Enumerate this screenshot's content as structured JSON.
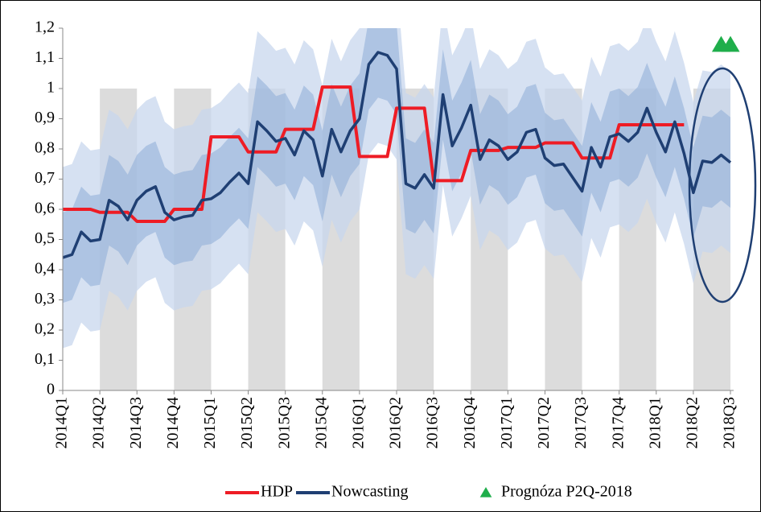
{
  "chart_data": {
    "type": "line",
    "categories": [
      "2014Q1",
      null,
      null,
      null,
      "2014Q2",
      null,
      null,
      null,
      "2014Q3",
      null,
      null,
      null,
      "2014Q4",
      null,
      null,
      null,
      "2015Q1",
      null,
      null,
      null,
      "2015Q2",
      null,
      null,
      null,
      "2015Q3",
      null,
      null,
      null,
      "2015Q4",
      null,
      null,
      null,
      "2016Q1",
      null,
      null,
      null,
      "2016Q2",
      null,
      null,
      null,
      "2016Q3",
      null,
      null,
      null,
      "2016Q4",
      null,
      null,
      null,
      "2017Q1",
      null,
      null,
      null,
      "2017Q2",
      null,
      null,
      null,
      "2017Q3",
      null,
      null,
      null,
      "2017Q4",
      null,
      null,
      null,
      "2018Q1",
      null,
      null,
      null,
      "2018Q2",
      null,
      null,
      null,
      "2018Q3"
    ],
    "ylim": [
      0,
      1.2
    ],
    "yticks": [
      0,
      {
        "value": 0.1,
        "label": "0,1"
      },
      {
        "value": 0.2,
        "label": "0,2"
      },
      {
        "value": 0.3,
        "label": "0,3"
      },
      {
        "value": 0.4,
        "label": "0,4"
      },
      {
        "value": 0.5,
        "label": "0,5"
      },
      {
        "value": 0.6,
        "label": "0,6"
      },
      {
        "value": 0.7,
        "label": "0,7"
      },
      {
        "value": 0.8,
        "label": "0,8"
      },
      {
        "value": 0.9,
        "label": "0,9"
      },
      1,
      {
        "value": 1.1,
        "label": "1,1"
      },
      {
        "value": 1.2,
        "label": "1,2"
      }
    ],
    "shading": {
      "color": "#dcdcdc",
      "top": 1
    },
    "bands": [
      {
        "color": "#c8d7ee",
        "upper": [
          0.74,
          0.75,
          0.825,
          0.795,
          0.8,
          0.93,
          0.91,
          0.865,
          0.93,
          0.96,
          0.975,
          0.89,
          0.865,
          0.875,
          0.88,
          0.93,
          0.935,
          0.955,
          0.99,
          1.02,
          0.985,
          1.19,
          1.16,
          1.125,
          1.135,
          1.08,
          1.16,
          1.13,
          1.01,
          1.165,
          1.09,
          1.16,
          1.2,
          1.38,
          1.42,
          1.41,
          1.365,
          0.985,
          0.97,
          1.015,
          0.97,
          1.28,
          1.11,
          1.17,
          1.245,
          1.065,
          1.13,
          1.11,
          1.065,
          1.09,
          1.155,
          1.165,
          1.07,
          1.045,
          1.05,
          1.005,
          0.96,
          1.105,
          1.04,
          1.14,
          1.15,
          1.125,
          1.155,
          1.235,
          1.155,
          1.09,
          1.19,
          1.085,
          0.955,
          1.06,
          1.055,
          1.08,
          1.055
        ],
        "lower": [
          0.14,
          0.15,
          0.225,
          0.195,
          0.2,
          0.33,
          0.31,
          0.265,
          0.33,
          0.36,
          0.375,
          0.29,
          0.265,
          0.275,
          0.28,
          0.33,
          0.335,
          0.355,
          0.39,
          0.42,
          0.385,
          0.59,
          0.56,
          0.525,
          0.535,
          0.48,
          0.56,
          0.53,
          0.41,
          0.565,
          0.49,
          0.56,
          0.6,
          0.78,
          0.82,
          0.81,
          0.765,
          0.385,
          0.37,
          0.415,
          0.37,
          0.68,
          0.51,
          0.57,
          0.645,
          0.465,
          0.53,
          0.51,
          0.465,
          0.49,
          0.555,
          0.565,
          0.47,
          0.445,
          0.45,
          0.405,
          0.36,
          0.505,
          0.44,
          0.54,
          0.55,
          0.525,
          0.555,
          0.635,
          0.555,
          0.49,
          0.59,
          0.485,
          0.355,
          0.46,
          0.455,
          0.48,
          0.455
        ]
      },
      {
        "color": "#93b1d9",
        "upper": [
          0.59,
          0.6,
          0.675,
          0.645,
          0.65,
          0.78,
          0.76,
          0.715,
          0.78,
          0.81,
          0.825,
          0.74,
          0.715,
          0.725,
          0.73,
          0.78,
          0.785,
          0.805,
          0.84,
          0.87,
          0.835,
          1.04,
          1.01,
          0.975,
          0.985,
          0.93,
          1.01,
          0.98,
          0.86,
          1.015,
          0.94,
          1.01,
          1.05,
          1.23,
          1.27,
          1.26,
          1.215,
          0.835,
          0.82,
          0.865,
          0.82,
          1.13,
          0.96,
          1.02,
          1.095,
          0.915,
          0.98,
          0.96,
          0.915,
          0.94,
          1.005,
          1.015,
          0.92,
          0.895,
          0.9,
          0.855,
          0.81,
          0.955,
          0.89,
          0.99,
          1,
          0.975,
          1.005,
          1.085,
          1.005,
          0.94,
          1.04,
          0.935,
          0.805,
          0.91,
          0.905,
          0.93,
          0.905
        ],
        "lower": [
          0.29,
          0.3,
          0.375,
          0.345,
          0.35,
          0.48,
          0.46,
          0.415,
          0.48,
          0.51,
          0.525,
          0.44,
          0.415,
          0.425,
          0.43,
          0.48,
          0.485,
          0.505,
          0.54,
          0.57,
          0.535,
          0.74,
          0.71,
          0.675,
          0.685,
          0.63,
          0.71,
          0.68,
          0.56,
          0.715,
          0.64,
          0.71,
          0.75,
          0.93,
          0.97,
          0.96,
          0.915,
          0.535,
          0.52,
          0.565,
          0.52,
          0.83,
          0.66,
          0.72,
          0.795,
          0.615,
          0.68,
          0.66,
          0.615,
          0.64,
          0.705,
          0.715,
          0.62,
          0.595,
          0.6,
          0.555,
          0.51,
          0.655,
          0.59,
          0.69,
          0.7,
          0.675,
          0.705,
          0.785,
          0.705,
          0.64,
          0.74,
          0.635,
          0.505,
          0.61,
          0.605,
          0.63,
          0.605
        ]
      }
    ],
    "series": [
      {
        "name": "HDP",
        "color": "#ee1c25",
        "style": "line",
        "values": [
          0.6,
          0.6,
          0.6,
          0.6,
          0.59,
          0.59,
          0.59,
          0.59,
          0.56,
          0.56,
          0.56,
          0.56,
          0.6,
          0.6,
          0.6,
          0.6,
          0.84,
          0.84,
          0.84,
          0.84,
          0.79,
          0.79,
          0.79,
          0.79,
          0.865,
          0.865,
          0.865,
          0.865,
          1.005,
          1.005,
          1.005,
          1.005,
          0.775,
          0.775,
          0.775,
          0.775,
          0.935,
          0.935,
          0.935,
          0.935,
          0.695,
          0.695,
          0.695,
          0.695,
          0.795,
          0.795,
          0.795,
          0.795,
          0.805,
          0.805,
          0.805,
          0.805,
          0.82,
          0.82,
          0.82,
          0.82,
          0.77,
          0.77,
          0.77,
          0.77,
          0.88,
          0.88,
          0.88,
          0.88,
          0.88,
          0.88,
          0.88,
          0.88,
          null,
          null,
          null,
          null,
          null
        ]
      },
      {
        "name": "Nowcasting",
        "color": "#1f3f73",
        "style": "line",
        "values": [
          0.44,
          0.45,
          0.525,
          0.495,
          0.5,
          0.63,
          0.61,
          0.565,
          0.63,
          0.66,
          0.675,
          0.59,
          0.565,
          0.575,
          0.58,
          0.63,
          0.635,
          0.655,
          0.69,
          0.72,
          0.685,
          0.89,
          0.86,
          0.825,
          0.835,
          0.78,
          0.86,
          0.83,
          0.71,
          0.865,
          0.79,
          0.86,
          0.9,
          1.08,
          1.12,
          1.11,
          1.065,
          0.685,
          0.67,
          0.715,
          0.67,
          0.98,
          0.81,
          0.87,
          0.945,
          0.765,
          0.83,
          0.81,
          0.765,
          0.79,
          0.855,
          0.865,
          0.77,
          0.745,
          0.75,
          0.705,
          0.66,
          0.805,
          0.74,
          0.84,
          0.85,
          0.825,
          0.855,
          0.935,
          0.855,
          0.79,
          0.89,
          0.785,
          0.655,
          0.76,
          0.755,
          0.78,
          0.755
        ]
      },
      {
        "name": "Prognóza P2Q-2018",
        "color": "#1fae4b",
        "style": "triangle",
        "values": [
          null,
          null,
          null,
          null,
          null,
          null,
          null,
          null,
          null,
          null,
          null,
          null,
          null,
          null,
          null,
          null,
          null,
          null,
          null,
          null,
          null,
          null,
          null,
          null,
          null,
          null,
          null,
          null,
          null,
          null,
          null,
          null,
          null,
          null,
          null,
          null,
          null,
          null,
          null,
          null,
          null,
          null,
          null,
          null,
          null,
          null,
          null,
          null,
          null,
          null,
          null,
          null,
          null,
          null,
          null,
          null,
          null,
          null,
          null,
          null,
          null,
          null,
          null,
          null,
          null,
          null,
          null,
          null,
          null,
          null,
          null,
          1.145,
          1.145
        ]
      }
    ]
  }
}
